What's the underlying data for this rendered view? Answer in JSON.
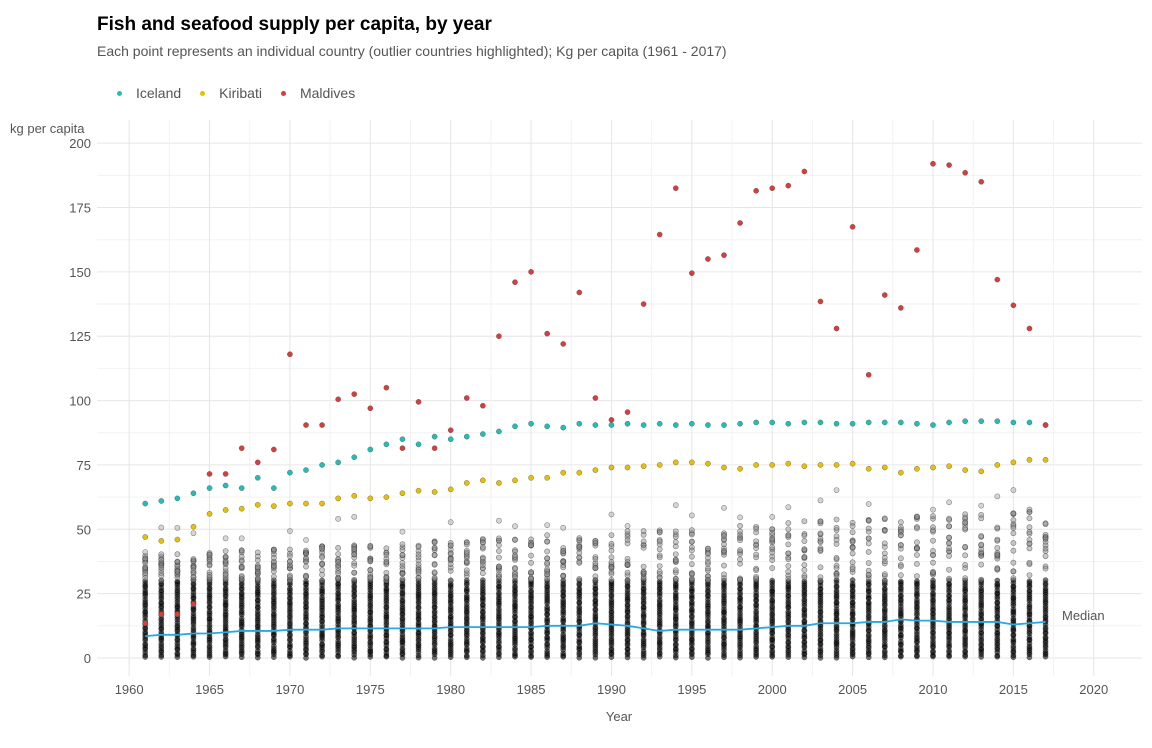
{
  "chart_data": {
    "type": "scatter",
    "title": "Fish and seafood supply per capita, by year",
    "subtitle": "Each point represents an individual country (outlier countries highlighted); Kg per capita (1961 - 2017)",
    "xlabel": "Year",
    "ylabel": "kg per capita",
    "xlim": [
      1958,
      2023
    ],
    "ylim": [
      -7,
      209
    ],
    "x_ticks": [
      1960,
      1965,
      1970,
      1975,
      1980,
      1985,
      1990,
      1995,
      2000,
      2005,
      2010,
      2015,
      2020
    ],
    "y_ticks": [
      0,
      25,
      50,
      75,
      100,
      125,
      150,
      175,
      200
    ],
    "grid": true,
    "legend_position": "top-left",
    "series": [
      {
        "name": "Iceland",
        "color": "#1fbfb8",
        "x": [
          1961,
          1962,
          1963,
          1964,
          1965,
          1966,
          1967,
          1968,
          1969,
          1970,
          1971,
          1972,
          1973,
          1974,
          1975,
          1976,
          1977,
          1978,
          1979,
          1980,
          1981,
          1982,
          1983,
          1984,
          1985,
          1986,
          1987,
          1988,
          1989,
          1990,
          1991,
          1992,
          1993,
          1994,
          1995,
          1996,
          1997,
          1998,
          1999,
          2000,
          2001,
          2002,
          2003,
          2004,
          2005,
          2006,
          2007,
          2008,
          2009,
          2010,
          2011,
          2012,
          2013,
          2014,
          2015,
          2016,
          2017
        ],
        "y": [
          60,
          61,
          62,
          64,
          66,
          67,
          66,
          70,
          66,
          72,
          73,
          75,
          76,
          78,
          81,
          83,
          85,
          83,
          86,
          85,
          86,
          87,
          88,
          90,
          91,
          90,
          89.5,
          91,
          90.5,
          90.5,
          91,
          90.5,
          91,
          90.5,
          91,
          90.5,
          90.5,
          91,
          91.5,
          91.5,
          91,
          91.5,
          91.5,
          91,
          91,
          91.5,
          91.5,
          91.5,
          91,
          90.5,
          91.5,
          92,
          92,
          92,
          91.5,
          91.5,
          90.5
        ]
      },
      {
        "name": "Kiribati",
        "color": "#e8c000",
        "x": [
          1961,
          1962,
          1963,
          1964,
          1965,
          1966,
          1967,
          1968,
          1969,
          1970,
          1971,
          1972,
          1973,
          1974,
          1975,
          1976,
          1977,
          1978,
          1979,
          1980,
          1981,
          1982,
          1983,
          1984,
          1985,
          1986,
          1987,
          1988,
          1989,
          1990,
          1991,
          1992,
          1993,
          1994,
          1995,
          1996,
          1997,
          1998,
          1999,
          2000,
          2001,
          2002,
          2003,
          2004,
          2005,
          2006,
          2007,
          2008,
          2009,
          2010,
          2011,
          2012,
          2013,
          2014,
          2015,
          2016,
          2017
        ],
        "y": [
          47,
          45.5,
          46,
          51,
          56,
          57.5,
          58,
          59.5,
          59,
          60,
          60,
          60,
          62,
          63,
          62,
          62.5,
          64,
          65,
          64.5,
          65.5,
          68,
          69,
          68,
          69,
          70,
          70,
          72,
          72,
          73,
          74,
          74,
          74.5,
          75,
          76,
          76,
          75.5,
          74,
          73.5,
          75,
          75,
          75.5,
          74.5,
          75,
          75,
          75.5,
          73.5,
          74,
          72,
          73.5,
          74,
          74.5,
          73,
          72.5,
          75,
          76,
          77,
          77
        ]
      },
      {
        "name": "Maldives",
        "color": "#d83c3c",
        "x": [
          1961,
          1962,
          1963,
          1964,
          1965,
          1966,
          1967,
          1968,
          1969,
          1970,
          1971,
          1972,
          1973,
          1974,
          1975,
          1976,
          1977,
          1978,
          1979,
          1980,
          1981,
          1982,
          1983,
          1984,
          1985,
          1986,
          1987,
          1988,
          1989,
          1990,
          1991,
          1992,
          1993,
          1994,
          1995,
          1996,
          1997,
          1998,
          1999,
          2000,
          2001,
          2002,
          2003,
          2004,
          2005,
          2006,
          2007,
          2008,
          2009,
          2010,
          2011,
          2012,
          2013,
          2014,
          2015,
          2016,
          2017
        ],
        "y": [
          13.5,
          17,
          17,
          21,
          71.5,
          71.5,
          81.5,
          76,
          81,
          118,
          90.5,
          90.5,
          100.5,
          102.5,
          97,
          105,
          81.5,
          99.5,
          81.5,
          88.5,
          101,
          98,
          125,
          146,
          150,
          126,
          122,
          142,
          101,
          92.5,
          95.5,
          137.5,
          164.5,
          182.5,
          149.5,
          155,
          156.5,
          169,
          181.5,
          182.5,
          183.5,
          189,
          138.5,
          128,
          167.5,
          110,
          141,
          136,
          158.5,
          192,
          191.5,
          188.5,
          185,
          147,
          137,
          128,
          90.5
        ]
      },
      {
        "name": "Median",
        "color": "#2ba8e0",
        "x": [
          1961,
          1962,
          1963,
          1964,
          1965,
          1966,
          1967,
          1968,
          1969,
          1970,
          1971,
          1972,
          1973,
          1974,
          1975,
          1976,
          1977,
          1978,
          1979,
          1980,
          1981,
          1982,
          1983,
          1984,
          1985,
          1986,
          1987,
          1988,
          1989,
          1990,
          1991,
          1992,
          1993,
          1994,
          1995,
          1996,
          1997,
          1998,
          1999,
          2000,
          2001,
          2002,
          2003,
          2004,
          2005,
          2006,
          2007,
          2008,
          2009,
          2010,
          2011,
          2012,
          2013,
          2014,
          2015,
          2016,
          2017
        ],
        "y": [
          8.5,
          9,
          9,
          9.5,
          9.5,
          10,
          10.5,
          10.5,
          10.5,
          11,
          11,
          11,
          11.5,
          11.5,
          11.5,
          11.5,
          11.5,
          11.5,
          11.5,
          12,
          12,
          12,
          12,
          12,
          12,
          12.5,
          12.5,
          12.5,
          13.5,
          13,
          12.5,
          11.5,
          10.5,
          11,
          11,
          11,
          11,
          11,
          11.5,
          12,
          12.5,
          12.5,
          13.5,
          13.5,
          13.5,
          14,
          14,
          15,
          14.5,
          14.5,
          14,
          14,
          14,
          14,
          13,
          13.5,
          14
        ]
      }
    ],
    "background_points": {
      "color": "#000000",
      "x_range": [
        1961,
        2017
      ],
      "dense_max": 30,
      "sparse_max_start": 40,
      "sparse_max_end": 58
    },
    "median_label": "Median"
  },
  "legend": {
    "items": [
      {
        "label": "Iceland",
        "color": "#1fbfb8"
      },
      {
        "label": "Kiribati",
        "color": "#e8c000"
      },
      {
        "label": "Maldives",
        "color": "#d83c3c"
      }
    ]
  }
}
